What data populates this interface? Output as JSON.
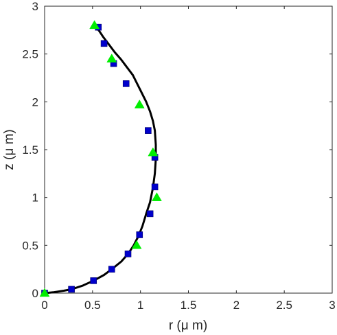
{
  "chart_data": {
    "type": "line",
    "title": "",
    "xlabel": "r (μ m)",
    "ylabel": "z (μ m)",
    "xlim": [
      0,
      3
    ],
    "ylim": [
      0,
      3
    ],
    "xticks": [
      0,
      0.5,
      1,
      1.5,
      2,
      2.5,
      3
    ],
    "yticks": [
      0,
      0.5,
      1,
      1.5,
      2,
      2.5,
      3
    ],
    "xtick_labels": [
      "0",
      "0.5",
      "1",
      "1.5",
      "2",
      "2.5",
      "3"
    ],
    "ytick_labels": [
      "0",
      "0.5",
      "1",
      "1.5",
      "2",
      "2.5",
      "3"
    ],
    "grid": false,
    "legend": "none",
    "series": [
      {
        "style": "line",
        "color": "#000000",
        "x": [
          0.0,
          0.1,
          0.2,
          0.28,
          0.4,
          0.51,
          0.62,
          0.7,
          0.8,
          0.87,
          0.93,
          0.98,
          1.02,
          1.06,
          1.1,
          1.13,
          1.15,
          1.16,
          1.16,
          1.15,
          1.13,
          1.1,
          1.06,
          1.01,
          0.96,
          0.92,
          0.86,
          0.8,
          0.73,
          0.67,
          0.61,
          0.57,
          0.53
        ],
        "y": [
          0.0,
          0.01,
          0.025,
          0.04,
          0.08,
          0.13,
          0.19,
          0.25,
          0.33,
          0.41,
          0.5,
          0.6,
          0.7,
          0.83,
          0.95,
          1.1,
          1.25,
          1.4,
          1.55,
          1.7,
          1.8,
          1.9,
          2.0,
          2.1,
          2.2,
          2.28,
          2.36,
          2.44,
          2.52,
          2.6,
          2.68,
          2.74,
          2.79
        ]
      },
      {
        "style": "square",
        "color": "#0000cc",
        "x": [
          0.0,
          0.28,
          0.51,
          0.7,
          0.87,
          0.99,
          1.1,
          1.15,
          1.15,
          1.08,
          0.85,
          0.72,
          0.62,
          0.56
        ],
        "y": [
          0.0,
          0.04,
          0.13,
          0.25,
          0.41,
          0.61,
          0.83,
          1.11,
          1.42,
          1.7,
          2.19,
          2.4,
          2.61,
          2.78
        ]
      },
      {
        "style": "triangle",
        "color": "#00ee00",
        "x": [
          0.0,
          0.96,
          1.17,
          1.13,
          0.99,
          0.7,
          0.52
        ],
        "y": [
          0.0,
          0.5,
          1.0,
          1.47,
          1.97,
          2.45,
          2.8
        ]
      }
    ]
  }
}
